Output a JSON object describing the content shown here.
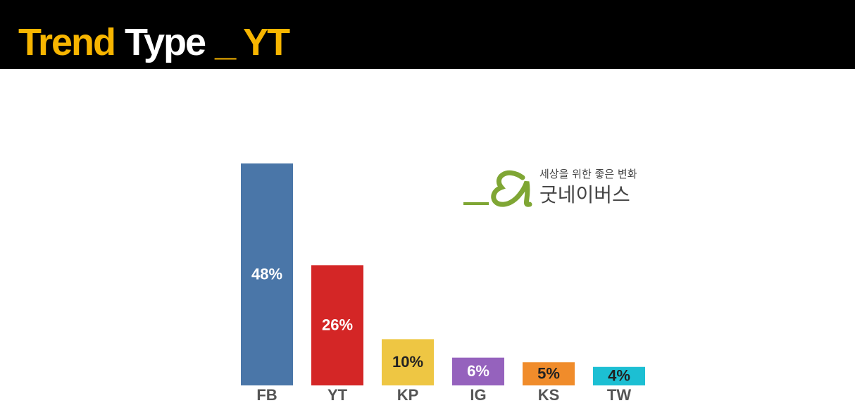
{
  "chart_data": {
    "type": "bar",
    "title": [
      "Trend",
      "Type",
      "_ YT"
    ],
    "title_colors": [
      "#f7b500",
      "#ffffff",
      "#f7b500"
    ],
    "categories": [
      "FB",
      "YT",
      "KP",
      "IG",
      "KS",
      "TW"
    ],
    "values": [
      48,
      26,
      10,
      6,
      5,
      4
    ],
    "value_labels": [
      "48%",
      "26%",
      "10%",
      "6%",
      "5%",
      "4%"
    ],
    "colors": [
      "#4a76a8",
      "#d42626",
      "#eec643",
      "#9562bd",
      "#f08c2b",
      "#1cbfd3"
    ],
    "value_label_colors": [
      "#ffffff",
      "#ffffff",
      "#222222",
      "#ffffff",
      "#222222",
      "#222222"
    ],
    "logo": {
      "tagline": "세상을 위한 좋은 변화",
      "name": "굿네이버스"
    }
  }
}
